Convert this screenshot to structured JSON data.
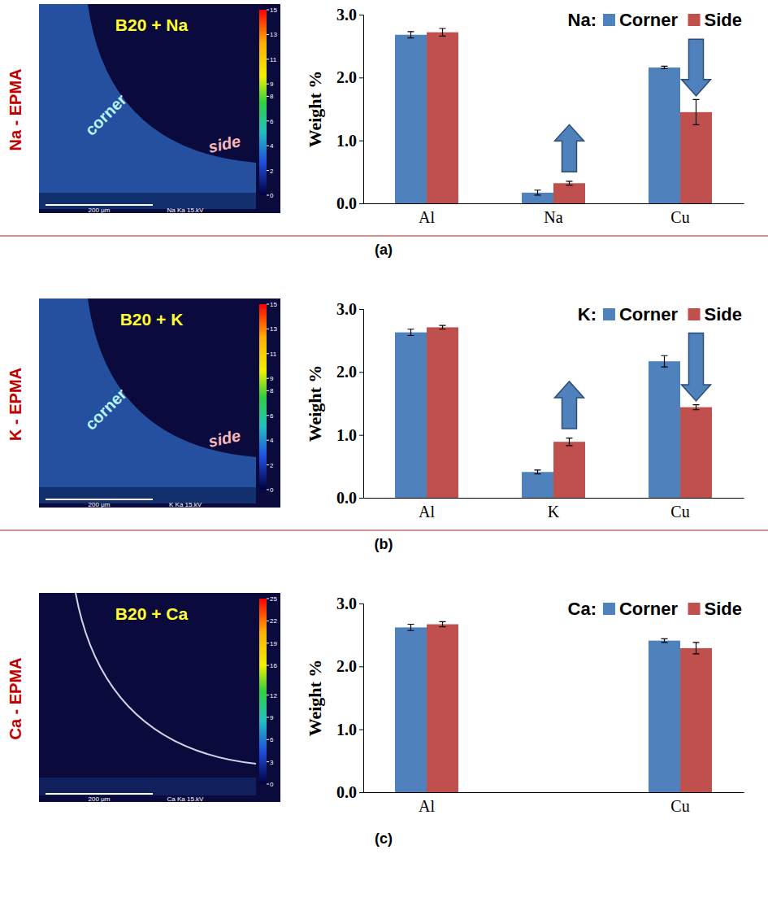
{
  "chart_data": [
    {
      "type": "bar",
      "title": "Na - EPMA",
      "panel_label": "(a)",
      "legend_title": "Na:",
      "legend": "top-right",
      "grid": false,
      "y_label": "Weight %",
      "categories": [
        "Al",
        "Na",
        "Cu"
      ],
      "series": [
        {
          "name": "Corner",
          "color": "#4f81bd",
          "values": [
            2.68,
            0.17,
            2.16
          ],
          "errors": [
            0.05,
            0.04,
            0.02
          ]
        },
        {
          "name": "Side",
          "color": "#c0504d",
          "values": [
            2.72,
            0.32,
            1.45
          ],
          "errors": [
            0.06,
            0.03,
            0.2
          ]
        }
      ],
      "ylim": [
        0,
        3
      ],
      "yticks": [
        {
          "value": 0,
          "label": "0.0"
        },
        {
          "value": 1,
          "label": "1.0"
        },
        {
          "value": 2,
          "label": "2.0"
        },
        {
          "value": 3,
          "label": "3.0"
        }
      ],
      "image": {
        "title": "B20 + Na",
        "labels": [
          "corner",
          "side"
        ],
        "scale_bar": "200 μm",
        "scale_caption": "Na Ka 15.kV",
        "colorbar_range": [
          0,
          15
        ],
        "colorbar_ticks": [
          0,
          2,
          4,
          6,
          8,
          9,
          11,
          13,
          15
        ]
      }
    },
    {
      "type": "bar",
      "title": "K - EPMA",
      "panel_label": "(b)",
      "legend_title": "K:",
      "legend": "top-right",
      "grid": false,
      "y_label": "Weight %",
      "categories": [
        "Al",
        "K",
        "Cu"
      ],
      "series": [
        {
          "name": "Corner",
          "color": "#4f81bd",
          "values": [
            2.63,
            0.41,
            2.17
          ],
          "errors": [
            0.05,
            0.03,
            0.09
          ]
        },
        {
          "name": "Side",
          "color": "#c0504d",
          "values": [
            2.71,
            0.89,
            1.44
          ],
          "errors": [
            0.03,
            0.06,
            0.04
          ]
        }
      ],
      "ylim": [
        0,
        3
      ],
      "yticks": [
        {
          "value": 0,
          "label": "0.0"
        },
        {
          "value": 1,
          "label": "1.0"
        },
        {
          "value": 2,
          "label": "2.0"
        },
        {
          "value": 3,
          "label": "3.0"
        }
      ],
      "image": {
        "title": "B20 + K",
        "labels": [
          "corner",
          "side"
        ],
        "scale_bar": "200 μm",
        "scale_caption": "K Ka 15.kV",
        "colorbar_range": [
          0,
          15
        ],
        "colorbar_ticks": [
          0,
          2,
          4,
          6,
          8,
          9,
          11,
          13,
          15
        ]
      }
    },
    {
      "type": "bar",
      "title": "Ca - EPMA",
      "panel_label": "(c)",
      "legend_title": "Ca:",
      "legend": "top-right",
      "grid": false,
      "y_label": "Weight %",
      "categories": [
        "Al",
        null,
        "Cu"
      ],
      "series": [
        {
          "name": "Corner",
          "color": "#4f81bd",
          "values": [
            2.62,
            null,
            2.41
          ],
          "errors": [
            0.05,
            null,
            0.03
          ]
        },
        {
          "name": "Side",
          "color": "#c0504d",
          "values": [
            2.67,
            null,
            2.29
          ],
          "errors": [
            0.04,
            null,
            0.09
          ]
        }
      ],
      "ylim": [
        0,
        3
      ],
      "yticks": [
        {
          "value": 0,
          "label": "0.0"
        },
        {
          "value": 1,
          "label": "1.0"
        },
        {
          "value": 2,
          "label": "2.0"
        },
        {
          "value": 3,
          "label": "3.0"
        }
      ],
      "image": {
        "title": "B20 + Ca",
        "labels": [],
        "scale_bar": "200 μm",
        "scale_caption": "Ca Ka 15.kV",
        "colorbar_range": [
          0,
          25
        ],
        "colorbar_ticks": [
          0,
          3,
          6,
          9,
          12,
          16,
          19,
          22,
          25
        ]
      }
    }
  ]
}
